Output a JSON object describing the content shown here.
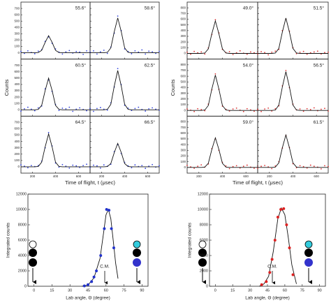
{
  "chart_data": [
    {
      "type": "tof-grid",
      "color": "#3344dd",
      "xlabel": "Time of flight, t (μsec)",
      "ylabel": "Counts",
      "x": [
        100,
        130,
        160,
        190,
        220,
        250,
        280,
        310,
        340,
        370,
        400,
        430,
        460,
        490,
        520,
        550,
        580,
        610,
        640,
        670,
        700
      ],
      "xlim": [
        100,
        700
      ],
      "xticks": [
        200,
        400,
        600
      ],
      "ylim": [
        -100,
        800
      ],
      "yticks": [
        0,
        100,
        200,
        300,
        400,
        500,
        600,
        700
      ],
      "panels": [
        {
          "label": "55.6°",
          "values": [
            20,
            -10,
            30,
            5,
            -15,
            25,
            50,
            180,
            250,
            150,
            60,
            10,
            -20,
            15,
            35,
            -5,
            20,
            10,
            -25,
            30,
            5
          ],
          "fit": [
            0,
            0,
            0,
            0,
            0,
            3,
            38,
            165,
            270,
            165,
            38,
            3,
            0,
            0,
            0,
            0,
            0,
            0,
            0,
            0,
            0
          ]
        },
        {
          "label": "58.6°",
          "values": [
            10,
            30,
            -20,
            15,
            40,
            -10,
            90,
            310,
            580,
            350,
            60,
            20,
            -15,
            30,
            10,
            45,
            -20,
            25,
            15,
            -10,
            20
          ],
          "fit": [
            0,
            0,
            0,
            0,
            0,
            6,
            77,
            336,
            550,
            336,
            77,
            6,
            0,
            0,
            0,
            0,
            0,
            0,
            0,
            0,
            0
          ]
        },
        {
          "label": "60.5°",
          "values": [
            -20,
            15,
            40,
            10,
            -15,
            30,
            60,
            330,
            470,
            290,
            85,
            -10,
            25,
            15,
            40,
            -25,
            10,
            30,
            5,
            -15,
            20
          ],
          "fit": [
            0,
            0,
            0,
            0,
            0,
            6,
            70,
            305,
            500,
            305,
            70,
            6,
            0,
            0,
            0,
            0,
            0,
            0,
            0,
            0,
            0
          ]
        },
        {
          "label": "62.5°",
          "values": [
            15,
            -25,
            20,
            35,
            10,
            -5,
            110,
            360,
            650,
            400,
            70,
            25,
            -10,
            20,
            40,
            5,
            -20,
            15,
            30,
            10,
            -5
          ],
          "fit": [
            0,
            0,
            0,
            0,
            0,
            7,
            87,
            378,
            620,
            378,
            87,
            7,
            0,
            0,
            0,
            0,
            0,
            0,
            0,
            0,
            0
          ]
        },
        {
          "label": "64.5°",
          "values": [
            30,
            10,
            -15,
            20,
            5,
            20,
            90,
            300,
            540,
            330,
            60,
            -5,
            35,
            10,
            -20,
            25,
            15,
            -10,
            20,
            40,
            0
          ],
          "fit": [
            0,
            0,
            0,
            0,
            0,
            6,
            73,
            317,
            520,
            317,
            73,
            6,
            0,
            0,
            0,
            0,
            0,
            0,
            0,
            0,
            0
          ]
        },
        {
          "label": "66.5°",
          "values": [
            -10,
            25,
            15,
            -20,
            30,
            10,
            40,
            240,
            350,
            210,
            70,
            15,
            -15,
            30,
            5,
            20,
            -25,
            10,
            35,
            -5,
            15
          ],
          "fit": [
            0,
            0,
            0,
            0,
            0,
            4,
            52,
            226,
            370,
            226,
            52,
            4,
            0,
            0,
            0,
            0,
            0,
            0,
            0,
            0,
            0
          ]
        }
      ]
    },
    {
      "type": "tof-grid",
      "color": "#dd3333",
      "xlabel": "Time of flight, t (μsec)",
      "ylabel": "Counts",
      "x": [
        100,
        130,
        160,
        190,
        220,
        250,
        280,
        310,
        340,
        370,
        400,
        430,
        460,
        490,
        520,
        550,
        580,
        610,
        640,
        670,
        700
      ],
      "xlim": [
        100,
        700
      ],
      "xticks": [
        200,
        400,
        600
      ],
      "ylim": [
        -100,
        900
      ],
      "yticks": [
        0,
        100,
        200,
        300,
        400,
        500,
        600,
        700,
        800
      ],
      "panels": [
        {
          "label": "49.0°",
          "values": [
            20,
            -15,
            35,
            10,
            25,
            -10,
            95,
            330,
            590,
            360,
            70,
            15,
            30,
            -20,
            10,
            45,
            5,
            -15,
            25,
            10,
            30
          ],
          "fit": [
            0,
            0,
            0,
            0,
            0,
            6,
            80,
            348,
            570,
            348,
            80,
            6,
            0,
            0,
            0,
            0,
            0,
            0,
            0,
            0,
            0
          ]
        },
        {
          "label": "51.5°",
          "values": [
            -10,
            30,
            15,
            -25,
            20,
            40,
            70,
            400,
            600,
            390,
            100,
            -5,
            20,
            35,
            -15,
            10,
            25,
            40,
            -10,
            15,
            20
          ],
          "fit": [
            0,
            0,
            0,
            0,
            0,
            7,
            87,
            378,
            620,
            378,
            87,
            7,
            0,
            0,
            0,
            0,
            0,
            0,
            0,
            0,
            0
          ]
        },
        {
          "label": "54.0°",
          "values": [
            25,
            5,
            -20,
            30,
            15,
            -5,
            110,
            360,
            640,
            370,
            75,
            20,
            -10,
            25,
            40,
            5,
            -20,
            30,
            10,
            -15,
            25
          ],
          "fit": [
            0,
            0,
            0,
            0,
            0,
            7,
            87,
            378,
            620,
            378,
            87,
            7,
            0,
            0,
            0,
            0,
            0,
            0,
            0,
            0,
            0
          ]
        },
        {
          "label": "56.5°",
          "values": [
            10,
            -20,
            25,
            40,
            -10,
            30,
            80,
            430,
            700,
            400,
            110,
            10,
            25,
            -15,
            30,
            15,
            45,
            -5,
            20,
            35,
            -10
          ],
          "fit": [
            0,
            0,
            0,
            0,
            0,
            7,
            95,
            415,
            680,
            415,
            95,
            7,
            0,
            0,
            0,
            0,
            0,
            0,
            0,
            0,
            0
          ]
        },
        {
          "label": "59.0°",
          "values": [
            35,
            10,
            -15,
            20,
            45,
            5,
            60,
            330,
            500,
            300,
            90,
            25,
            -20,
            15,
            30,
            -10,
            20,
            40,
            5,
            -15,
            25
          ],
          "fit": [
            0,
            0,
            0,
            0,
            0,
            6,
            73,
            317,
            520,
            317,
            73,
            6,
            0,
            0,
            0,
            0,
            0,
            0,
            0,
            0,
            0
          ]
        },
        {
          "label": "61.5°",
          "values": [
            -15,
            20,
            35,
            10,
            -20,
            25,
            100,
            340,
            560,
            350,
            65,
            -5,
            30,
            15,
            -10,
            40,
            20,
            5,
            -25,
            30,
            15
          ],
          "fit": [
            0,
            0,
            0,
            0,
            0,
            6,
            80,
            348,
            570,
            348,
            80,
            6,
            0,
            0,
            0,
            0,
            0,
            0,
            0,
            0,
            0
          ]
        }
      ]
    },
    {
      "type": "angular",
      "color": "#2233cc",
      "xlabel": "Lab angle, Θ (degree)",
      "ylabel": "Integrated counts",
      "annotation": "C.M.",
      "x": [
        42,
        45,
        48,
        50,
        52,
        55.6,
        58.6,
        60.5,
        62.5,
        64.5,
        66.5
      ],
      "values": [
        50,
        200,
        600,
        1200,
        2000,
        4000,
        7500,
        10000,
        9900,
        7500,
        5000
      ],
      "fit_x": [
        40,
        45,
        50,
        55,
        58,
        60,
        62,
        64,
        66,
        68,
        70
      ],
      "fit_values": [
        0,
        150,
        1100,
        3600,
        7000,
        9300,
        10000,
        8800,
        6000,
        3000,
        1000
      ],
      "xlim": [
        -5,
        95
      ],
      "xticks": [
        0,
        15,
        30,
        45,
        60,
        75,
        90
      ],
      "ylim": [
        0,
        12000
      ],
      "yticks": [
        0,
        2000,
        4000,
        6000,
        8000,
        10000,
        12000
      ]
    },
    {
      "type": "angular",
      "color": "#dd2222",
      "xlabel": "Lab angle, Θ (degree)",
      "ylabel": "Integrated counts",
      "annotation": "C.M.",
      "x": [
        40,
        44,
        47,
        49,
        51.5,
        54,
        56.5,
        59,
        61.5,
        64,
        67
      ],
      "values": [
        200,
        600,
        1800,
        3500,
        6000,
        9000,
        10000,
        10100,
        8000,
        5000,
        1500
      ],
      "fit_x": [
        38,
        42,
        46,
        50,
        54,
        57,
        60,
        63,
        66,
        70
      ],
      "fit_values": [
        0,
        300,
        1300,
        4500,
        8800,
        10200,
        9300,
        6300,
        2800,
        300
      ],
      "xlim": [
        -5,
        95
      ],
      "xticks": [
        0,
        15,
        30,
        45,
        60,
        75,
        90
      ],
      "ylim": [
        0,
        12000
      ],
      "yticks": [
        0,
        2000,
        4000,
        6000,
        8000,
        10000,
        12000
      ]
    }
  ]
}
